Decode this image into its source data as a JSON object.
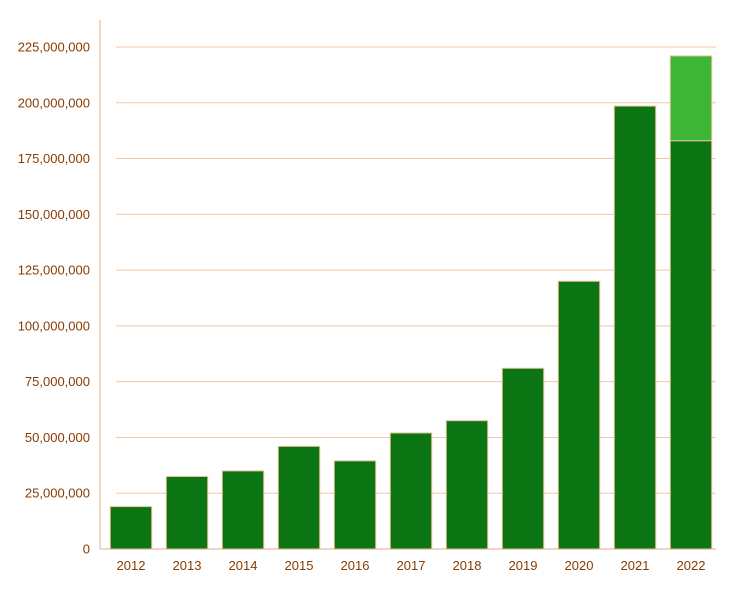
{
  "chart_data": {
    "type": "bar",
    "title": "",
    "xlabel": "",
    "ylabel": "",
    "categories": [
      "2012",
      "2013",
      "2014",
      "2015",
      "2016",
      "2017",
      "2018",
      "2019",
      "2020",
      "2021",
      "2022"
    ],
    "series": [
      {
        "values": [
          19000000,
          32500000,
          35000000,
          46000000,
          39500000,
          52000000,
          57500000,
          81000000,
          120000000,
          198500000,
          183000000
        ]
      },
      {
        "values": [
          0,
          0,
          0,
          0,
          0,
          0,
          0,
          0,
          0,
          0,
          38000000
        ]
      }
    ],
    "stacked": true,
    "ylim": [
      0,
      225000000
    ],
    "yticks": [
      0,
      25000000,
      50000000,
      75000000,
      100000000,
      125000000,
      150000000,
      175000000,
      200000000,
      225000000
    ],
    "ytick_labels": [
      "0",
      "25,000,000",
      "50,000,000",
      "75,000,000",
      "100,000,000",
      "125,000,000",
      "150,000,000",
      "175,000,000",
      "200,000,000",
      "225,000,000"
    ],
    "grid": true,
    "legend": "none",
    "colors": {
      "bar_primary": "#0a7512",
      "bar_secondary": "#3db535",
      "bar_outline": "#e8c09a",
      "grid": "#f0c7a8",
      "axis": "#e8c9ad",
      "label": "#8a3b00"
    }
  }
}
